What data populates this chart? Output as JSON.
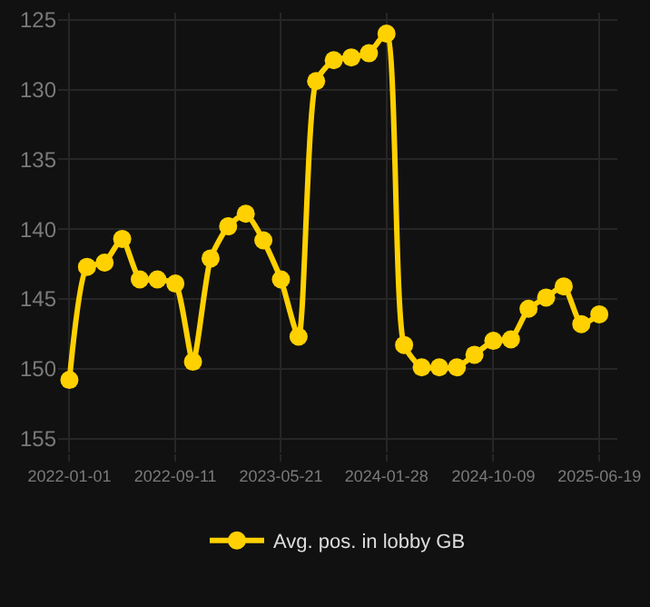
{
  "chart_data": {
    "type": "line",
    "x": [
      "2022-01-01",
      "2022-02-12",
      "2022-03-26",
      "2022-05-07",
      "2022-06-18",
      "2022-07-30",
      "2022-09-11",
      "2022-10-23",
      "2022-12-04",
      "2023-01-15",
      "2023-02-26",
      "2023-04-09",
      "2023-05-21",
      "2023-07-02",
      "2023-08-13",
      "2023-09-24",
      "2023-11-05",
      "2023-12-17",
      "2024-01-28",
      "2024-03-10",
      "2024-04-21",
      "2024-06-02",
      "2024-07-14",
      "2024-08-25",
      "2024-10-09",
      "2024-11-20",
      "2025-01-01",
      "2025-02-12",
      "2025-03-26",
      "2025-05-07",
      "2025-06-19"
    ],
    "series": [
      {
        "name": "Avg. pos. in lobby GB",
        "color": "#ffd100",
        "values": [
          150.8,
          142.7,
          142.4,
          140.7,
          143.6,
          143.6,
          143.9,
          149.5,
          142.1,
          139.8,
          138.9,
          140.8,
          143.6,
          147.7,
          129.4,
          127.9,
          127.7,
          127.4,
          126.0,
          148.3,
          149.9,
          149.9,
          149.9,
          149.0,
          148.0,
          147.9,
          145.7,
          144.9,
          144.1,
          146.8,
          146.1
        ]
      }
    ],
    "xlim": [
      "2021-12-05",
      "2025-08-01"
    ],
    "xticks": [
      {
        "value": "2022-01-01",
        "label": "2022-01-01"
      },
      {
        "value": "2022-09-11",
        "label": "2022-09-11"
      },
      {
        "value": "2023-05-21",
        "label": "2023-05-21"
      },
      {
        "value": "2024-01-28",
        "label": "2024-01-28"
      },
      {
        "value": "2024-10-09",
        "label": "2024-10-09"
      },
      {
        "value": "2025-06-19",
        "label": "2025-06-19"
      }
    ],
    "ylim": [
      156,
      124.5
    ],
    "yticks": [
      125,
      130,
      135,
      140,
      145,
      150,
      155
    ],
    "grid": true,
    "legend": "bottom",
    "marker": "circle",
    "line_style": "solid"
  }
}
